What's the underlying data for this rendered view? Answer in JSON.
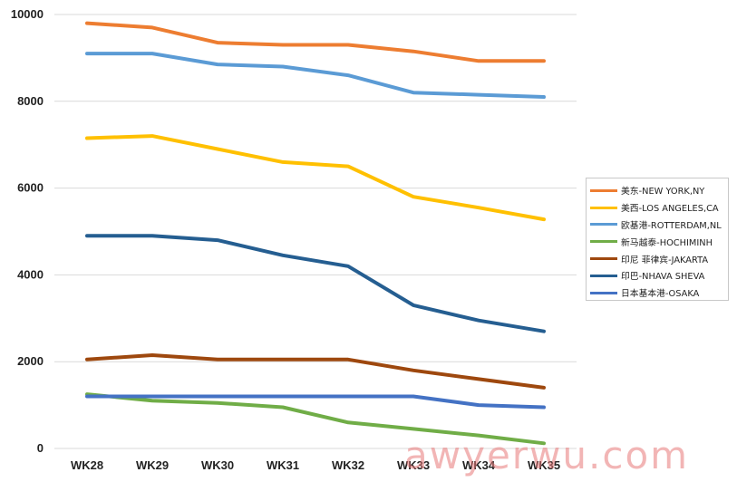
{
  "chart_data": {
    "type": "line",
    "title": "",
    "xlabel": "",
    "ylabel": "",
    "categories": [
      "WK28",
      "WK29",
      "WK30",
      "WK31",
      "WK32",
      "WK33",
      "WK34",
      "WK35"
    ],
    "ylim": [
      0,
      10000
    ],
    "yticks": [
      0,
      2000,
      4000,
      6000,
      8000,
      10000
    ],
    "grid": true,
    "legend_position": "right",
    "series": [
      {
        "name": "美东-NEW YORK,NY",
        "color": "#ED7D31",
        "values": [
          9800,
          9700,
          9350,
          9300,
          9300,
          9150,
          8930,
          8930
        ]
      },
      {
        "name": "美西-LOS ANGELES,CA",
        "color": "#FFC000",
        "values": [
          7150,
          7200,
          6900,
          6600,
          6500,
          5800,
          5550,
          5280
        ]
      },
      {
        "name": "欧基港-ROTTERDAM,NL",
        "color": "#5B9BD5",
        "values": [
          9100,
          9100,
          8850,
          8800,
          8600,
          8200,
          8150,
          8100
        ]
      },
      {
        "name": "新马越泰-HOCHIMINH",
        "color": "#70AD47",
        "values": [
          1250,
          1100,
          1050,
          950,
          600,
          450,
          300,
          120
        ]
      },
      {
        "name": "印尼 菲律宾-JAKARTA",
        "color": "#9E480E",
        "values": [
          2050,
          2150,
          2050,
          2050,
          2050,
          1800,
          1600,
          1400
        ]
      },
      {
        "name": "印巴-NHAVA SHEVA",
        "color": "#255E91",
        "values": [
          4900,
          4900,
          4800,
          4450,
          4200,
          3300,
          2950,
          2700
        ]
      },
      {
        "name": "日本基本港-OSAKA",
        "color": "#4472C4",
        "values": [
          1200,
          1200,
          1200,
          1200,
          1200,
          1200,
          1000,
          950
        ]
      }
    ]
  },
  "watermark": "awyerwu.com"
}
